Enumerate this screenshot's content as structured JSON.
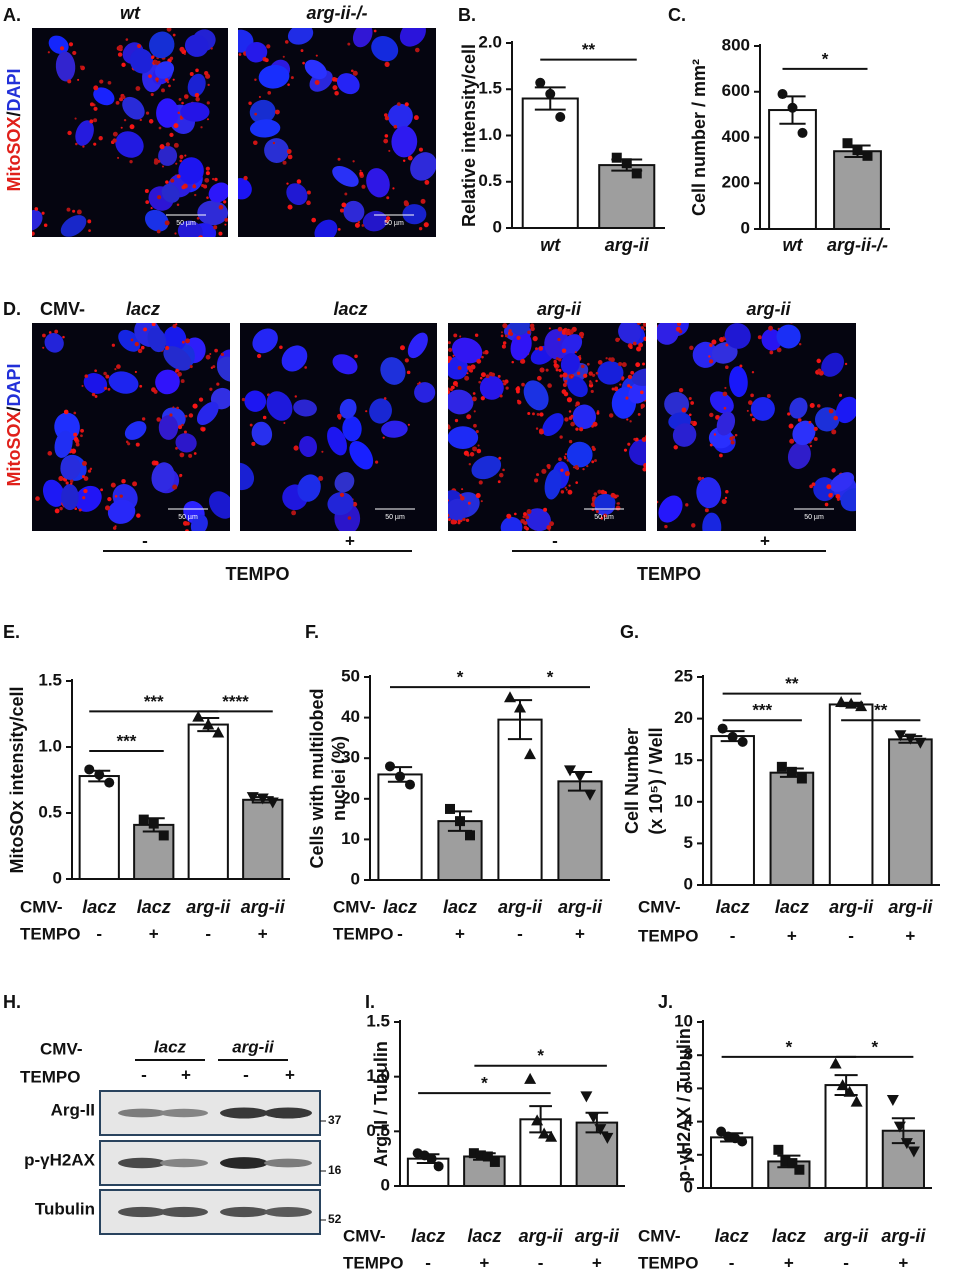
{
  "panel_a": {
    "label": "A.",
    "titles": [
      "wt",
      "arg-ii-/-"
    ],
    "side_label": {
      "red": "MitoSOX",
      "sep": "/",
      "blue": "DAPI"
    },
    "scale_bar": "50 µm"
  },
  "panel_d": {
    "label": "D.",
    "prefix": "CMV-",
    "titles": [
      "lacz",
      "lacz",
      "arg-ii",
      "arg-ii"
    ],
    "side_label": {
      "red": "MitoSOX",
      "sep": "/",
      "blue": "DAPI"
    },
    "tempo": [
      "-",
      "+",
      "-",
      "+"
    ],
    "tempo_labels": [
      "TEMPO",
      "TEMPO"
    ],
    "scale_bar": "50 µm"
  },
  "panel_h": {
    "label": "H.",
    "cmv": "CMV-",
    "groups": [
      "lacz",
      "arg-ii"
    ],
    "tempo_label": "TEMPO",
    "tempo": [
      "-",
      "+",
      "-",
      "+"
    ],
    "rows": [
      "Arg-II",
      "p-γH2AX",
      "Tubulin"
    ],
    "mw": [
      "37",
      "16",
      "52"
    ]
  },
  "chart_data": [
    {
      "type": "bar",
      "label": "B.",
      "ylabel": [
        "Relative intensity/cell"
      ],
      "categories": [
        "wt",
        "arg-ii"
      ],
      "values": [
        1.4,
        0.68
      ],
      "errors": [
        0.12,
        0.06
      ],
      "points": [
        [
          1.57,
          1.45,
          1.2
        ],
        [
          0.76,
          0.7,
          0.59
        ]
      ],
      "markers": [
        "circle",
        "square"
      ],
      "colors": [
        "#ffffff",
        "#9e9e9e"
      ],
      "ylim": [
        0,
        2
      ],
      "yticks": [
        0,
        0.5,
        {
          "value": 1,
          "label": "1.0"
        },
        1.5,
        {
          "value": 2,
          "label": "2.0"
        }
      ],
      "significance": [
        {
          "from": 0,
          "to": 1,
          "label": "**",
          "y": 1.82
        }
      ]
    },
    {
      "type": "bar",
      "label": "C.",
      "ylabel": [
        "Cell number / mm²"
      ],
      "categories": [
        "wt",
        "arg-ii-/-"
      ],
      "values": [
        520,
        340
      ],
      "errors": [
        60,
        25
      ],
      "points": [
        [
          590,
          530,
          420
        ],
        [
          375,
          345,
          320
        ]
      ],
      "markers": [
        "circle",
        "square"
      ],
      "colors": [
        "#ffffff",
        "#9e9e9e"
      ],
      "ylim": [
        0,
        800
      ],
      "yticks": [
        0,
        200,
        400,
        600,
        800
      ],
      "significance": [
        {
          "from": 0,
          "to": 1,
          "label": "*",
          "y": 700
        }
      ]
    },
    {
      "type": "bar",
      "label": "E.",
      "ylabel": [
        "MitoSOx intensity/cell"
      ],
      "row_label": "CMV-",
      "categories": [
        "lacz",
        "lacz",
        "arg-ii",
        "arg-ii"
      ],
      "tempo_label": "TEMPO",
      "tempo": [
        "-",
        "+",
        "-",
        "+"
      ],
      "values": [
        0.78,
        0.41,
        1.17,
        0.6
      ],
      "errors": [
        0.04,
        0.05,
        0.05,
        0.02
      ],
      "points": [
        [
          0.83,
          0.79,
          0.73
        ],
        [
          0.45,
          0.42,
          0.33
        ],
        [
          1.23,
          1.17,
          1.11
        ],
        [
          0.62,
          0.61,
          0.58
        ]
      ],
      "markers": [
        "circle",
        "square",
        "triangle",
        "triangle-down"
      ],
      "colors": [
        "#ffffff",
        "#9e9e9e",
        "#ffffff",
        "#9e9e9e"
      ],
      "ylim": [
        0,
        1.5
      ],
      "yticks": [
        0,
        0.5,
        {
          "value": 1,
          "label": "1.0"
        },
        1.5
      ],
      "significance": [
        {
          "from": 0,
          "to": 1,
          "label": "***",
          "y": 0.97
        },
        {
          "from": 0,
          "to": 2,
          "label": "***",
          "y": 1.27
        },
        {
          "from": 2,
          "to": 3,
          "label": "****",
          "y": 1.27
        }
      ]
    },
    {
      "type": "bar",
      "label": "F.",
      "ylabel": [
        "Cells with multilobed",
        "nuclei (%)"
      ],
      "row_label": "CMV-",
      "categories": [
        "lacz",
        "lacz",
        "arg-ii",
        "arg-ii"
      ],
      "tempo_label": "TEMPO",
      "tempo": [
        "-",
        "+",
        "-",
        "+"
      ],
      "values": [
        26,
        14.5,
        39.5,
        24.3
      ],
      "errors": [
        1.8,
        2.4,
        4.8,
        2.3
      ],
      "points": [
        [
          28,
          25.5,
          23.5
        ],
        [
          17.5,
          14.5,
          11
        ],
        [
          45,
          42.5,
          31
        ],
        [
          27,
          25.5,
          21
        ]
      ],
      "markers": [
        "circle",
        "square",
        "triangle",
        "triangle-down"
      ],
      "colors": [
        "#ffffff",
        "#9e9e9e",
        "#ffffff",
        "#9e9e9e"
      ],
      "ylim": [
        0,
        50
      ],
      "yticks": [
        0,
        10,
        20,
        30,
        40,
        50
      ],
      "significance": [
        {
          "from": 0,
          "to": 2,
          "label": "*",
          "y": 47.5
        },
        {
          "from": 2,
          "to": 3,
          "label": "*",
          "y": 47.5
        }
      ]
    },
    {
      "type": "bar",
      "label": "G.",
      "ylabel": [
        "Cell Number",
        "(x 10⁵) / Well"
      ],
      "row_label": "CMV-",
      "categories": [
        "lacz",
        "lacz",
        "arg-ii",
        "arg-ii"
      ],
      "tempo_label": "TEMPO",
      "tempo": [
        "-",
        "+",
        "-",
        "+"
      ],
      "values": [
        17.9,
        13.5,
        21.7,
        17.5
      ],
      "errors": [
        0.6,
        0.5,
        0.2,
        0.4
      ],
      "points": [
        [
          18.8,
          17.8,
          17.2
        ],
        [
          14.2,
          13.6,
          12.8
        ],
        [
          22,
          21.8,
          21.5
        ],
        [
          18,
          17.6,
          17.1
        ]
      ],
      "markers": [
        "circle",
        "square",
        "triangle",
        "triangle-down"
      ],
      "colors": [
        "#ffffff",
        "#9e9e9e",
        "#ffffff",
        "#9e9e9e"
      ],
      "ylim": [
        0,
        25
      ],
      "yticks": [
        0,
        5,
        10,
        15,
        20,
        25
      ],
      "significance": [
        {
          "from": 0,
          "to": 2,
          "label": "**",
          "y": 23
        },
        {
          "from": 0,
          "to": 1,
          "label": "***",
          "y": 19.8
        },
        {
          "from": 2,
          "to": 3,
          "label": "**",
          "y": 19.8
        }
      ]
    },
    {
      "type": "bar",
      "label": "I.",
      "ylabel": [
        "Arg-II / Tubulin"
      ],
      "row_label": "CMV-",
      "categories": [
        "lacz",
        "lacz",
        "arg-ii",
        "arg-ii"
      ],
      "tempo_label": "TEMPO",
      "tempo": [
        "-",
        "+",
        "-",
        "+"
      ],
      "values": [
        0.25,
        0.27,
        0.61,
        0.58
      ],
      "errors": [
        0.04,
        0.03,
        0.12,
        0.09
      ],
      "points": [
        [
          0.3,
          0.28,
          0.25,
          0.18
        ],
        [
          0.3,
          0.28,
          0.27,
          0.22
        ],
        [
          0.98,
          0.6,
          0.48,
          0.45
        ],
        [
          0.82,
          0.63,
          0.52,
          0.44
        ]
      ],
      "markers": [
        "circle",
        "square",
        "triangle",
        "triangle-down"
      ],
      "colors": [
        "#ffffff",
        "#9e9e9e",
        "#ffffff",
        "#9e9e9e"
      ],
      "ylim": [
        0,
        1.5
      ],
      "yticks": [
        0,
        0.5,
        {
          "value": 1,
          "label": "1.0"
        },
        1.5
      ],
      "significance": [
        {
          "from": 0,
          "to": 2,
          "label": "*",
          "y": 0.85
        },
        {
          "from": 1,
          "to": 3,
          "label": "*",
          "y": 1.1
        }
      ]
    },
    {
      "type": "bar",
      "label": "J.",
      "ylabel": [
        "p-γH2AX / Tubulin"
      ],
      "row_label": "CMV-",
      "categories": [
        "lacz",
        "lacz",
        "arg-ii",
        "arg-ii"
      ],
      "tempo_label": "TEMPO",
      "tempo": [
        "-",
        "+",
        "-",
        "+"
      ],
      "values": [
        3.05,
        1.6,
        6.2,
        3.45
      ],
      "errors": [
        0.25,
        0.35,
        0.6,
        0.75
      ],
      "points": [
        [
          3.4,
          3.1,
          3,
          2.8
        ],
        [
          2.3,
          1.6,
          1.5,
          1.1
        ],
        [
          7.5,
          6.2,
          5.8,
          5.2
        ],
        [
          5.3,
          3.7,
          2.7,
          2.2
        ]
      ],
      "markers": [
        "circle",
        "square",
        "triangle",
        "triangle-down"
      ],
      "colors": [
        "#ffffff",
        "#9e9e9e",
        "#ffffff",
        "#9e9e9e"
      ],
      "ylim": [
        0,
        10
      ],
      "yticks": [
        0,
        2,
        4,
        6,
        8,
        10
      ],
      "significance": [
        {
          "from": 0,
          "to": 2,
          "label": "*",
          "y": 7.9
        },
        {
          "from": 2,
          "to": 3,
          "label": "*",
          "y": 7.9
        }
      ]
    }
  ]
}
